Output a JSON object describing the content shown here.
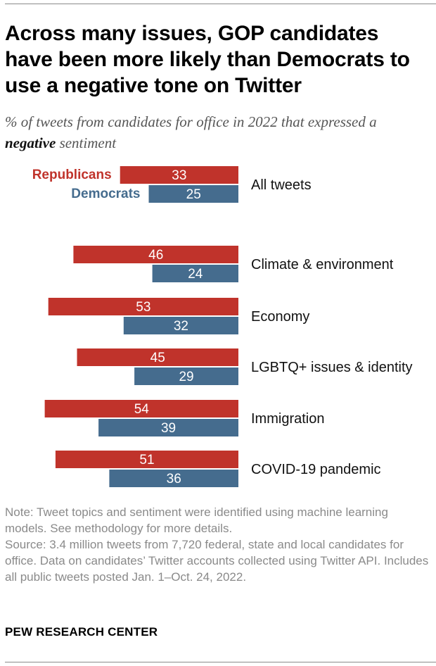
{
  "title": "Across many issues, GOP candidates have been more likely than Democrats to use a negative tone on Twitter",
  "subtitle": {
    "before": "% of tweets from candidates for office in 2022 that expressed a ",
    "emphasis": "negative",
    "after": " sentiment"
  },
  "note": {
    "line1": "Note: Tweet topics and sentiment were identified using machine learning models. See methodology for more details.",
    "line2": "Source: 3.4 million tweets from 7,720 federal, state and local candidates for office. Data on candidates’ Twitter accounts collected using Twitter API. Includes all public tweets posted Jan. 1–Oct. 24, 2022."
  },
  "brand": "PEW RESEARCH CENTER",
  "colors": {
    "republican": "#c0332b",
    "democrat": "#456c8e",
    "value_text": "#ffffff"
  },
  "chart_data": {
    "type": "bar",
    "orientation": "horizontal",
    "categories": [
      "All tweets",
      "Climate & environment",
      "Economy",
      "LGBTQ+ issues & identity",
      "Immigration",
      "COVID-19 pandemic"
    ],
    "series": [
      {
        "name": "Republicans",
        "values": [
          33,
          46,
          53,
          45,
          54,
          51
        ]
      },
      {
        "name": "Democrats",
        "values": [
          25,
          24,
          32,
          29,
          39,
          36
        ]
      }
    ],
    "xlim": [
      0,
      60
    ],
    "grid": false,
    "legend": "inline-left-of-first-bars"
  }
}
